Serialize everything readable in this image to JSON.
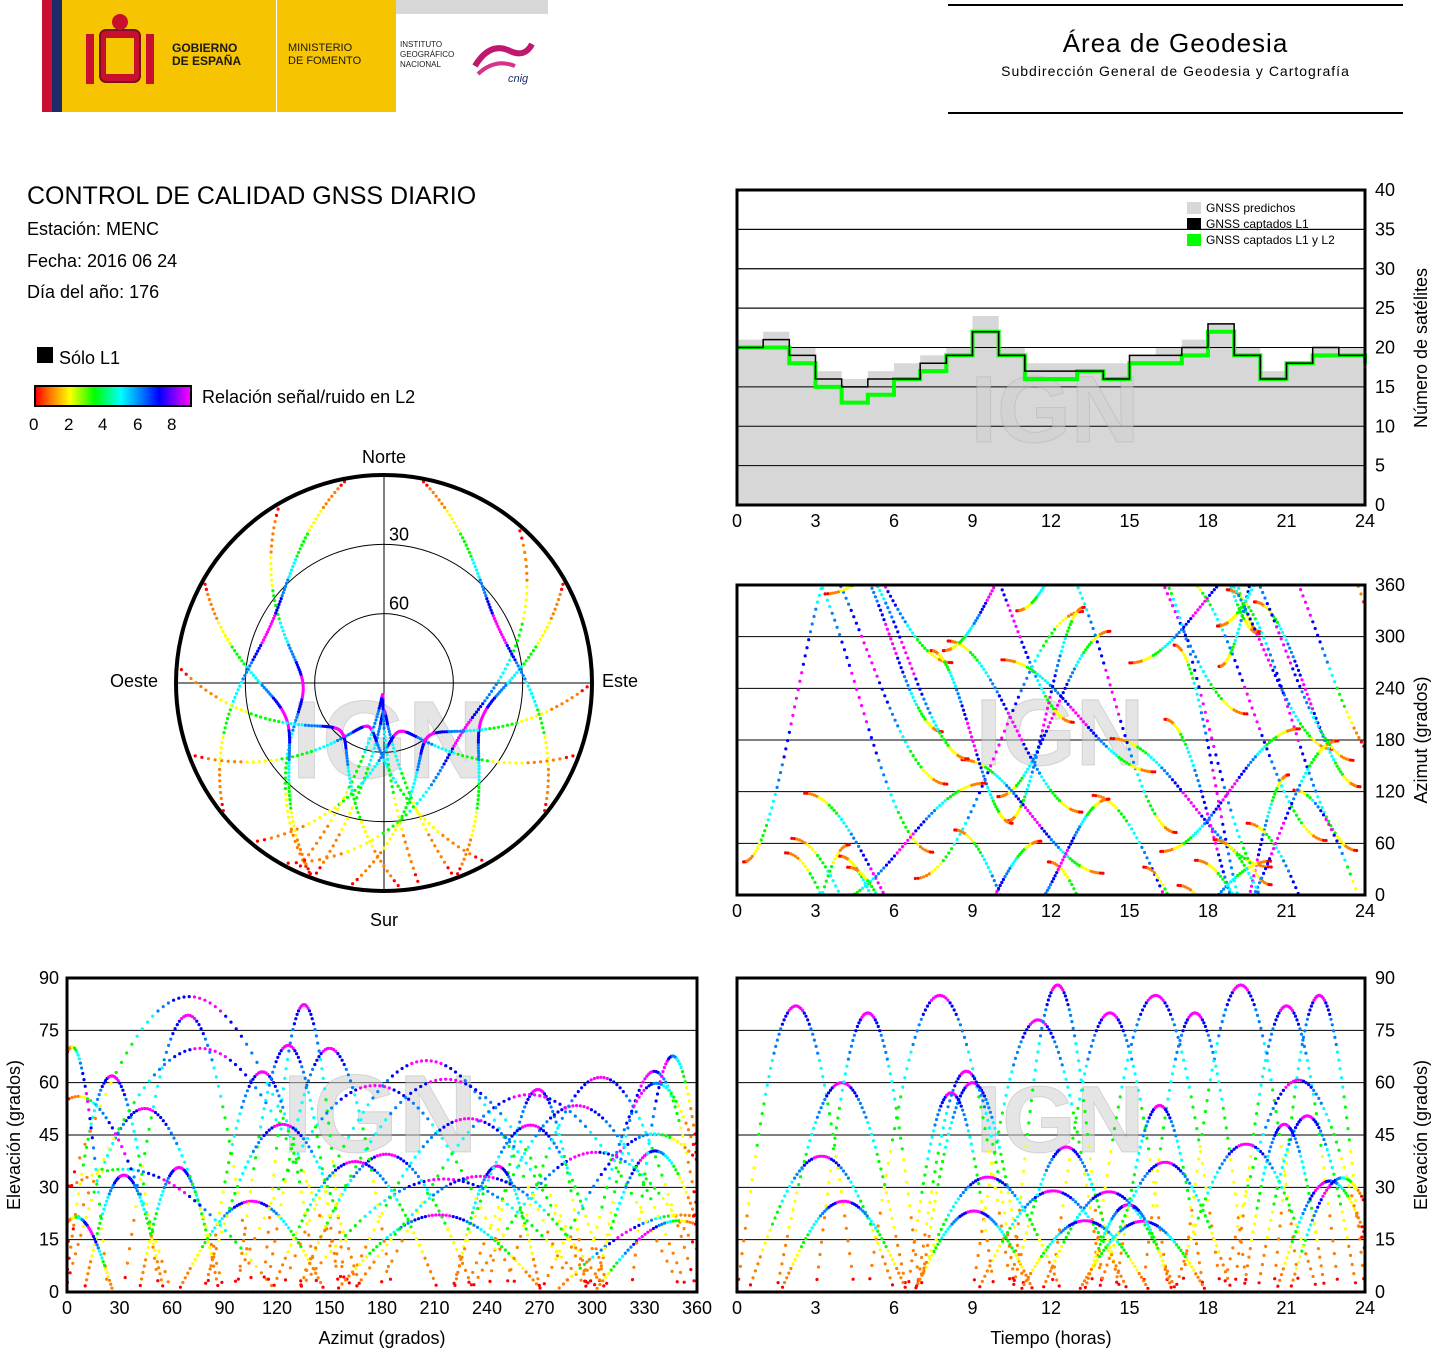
{
  "header": {
    "gov_line1": "GOBIERNO",
    "gov_line2": "DE ESPAÑA",
    "min_line1": "MINISTERIO",
    "min_line2": "DE FOMENTO",
    "ign_line1": "INSTITUTO",
    "ign_line2": "GEOGRÁFICO",
    "ign_line3": "NACIONAL",
    "cnig": "cnig",
    "area_title": "Área de Geodesia",
    "area_subtitle": "Subdirección General de Geodesia y Cartografía"
  },
  "report": {
    "title": "CONTROL DE CALIDAD GNSS DIARIO",
    "station": "Estación: MENC",
    "date": "Fecha: 2016 06 24",
    "doy": "Día del año: 176"
  },
  "legend": {
    "l1_only": "Sólo L1",
    "snr_label": "Relación señal/ruido en L2",
    "snr_ticks": [
      "0",
      "2",
      "4",
      "6",
      "8"
    ]
  },
  "watermark": "IGN",
  "colors": {
    "predicted": "#d7d7d7",
    "l1": "#000000",
    "l1l2": "#00ff00",
    "snr_scale": [
      "#ff0000",
      "#ff7f00",
      "#ffff00",
      "#00ff00",
      "#00ffff",
      "#0080ff",
      "#0000ff",
      "#ff00ff"
    ]
  },
  "chart_data": [
    {
      "id": "skyplot",
      "type": "scatter",
      "directions": {
        "north": "Norte",
        "south": "Sur",
        "east": "Este",
        "west": "Oeste"
      },
      "ring_labels": [
        "30",
        "60"
      ],
      "rings": [
        30,
        60
      ],
      "tracks": [
        {
          "rise_az": 200,
          "top_az": 270,
          "set_az": 330,
          "max_el": 55
        },
        {
          "rise_az": 210,
          "top_az": 120,
          "set_az": 40,
          "max_el": 50
        },
        {
          "rise_az": 160,
          "top_az": 180,
          "set_az": 200,
          "max_el": 78
        },
        {
          "rise_az": 150,
          "top_az": 200,
          "set_az": 250,
          "max_el": 70
        },
        {
          "rise_az": 220,
          "top_az": 160,
          "set_az": 110,
          "max_el": 68
        },
        {
          "rise_az": 300,
          "top_az": 250,
          "set_az": 200,
          "max_el": 45
        },
        {
          "rise_az": 60,
          "top_az": 110,
          "set_az": 160,
          "max_el": 45
        },
        {
          "rise_az": 170,
          "top_az": 185,
          "set_az": 205,
          "max_el": 85
        },
        {
          "rise_az": 230,
          "top_az": 300,
          "set_az": 350,
          "max_el": 35
        },
        {
          "rise_az": 130,
          "top_az": 60,
          "set_az": 10,
          "max_el": 35
        },
        {
          "rise_az": 190,
          "top_az": 140,
          "set_az": 90,
          "max_el": 60
        },
        {
          "rise_az": 175,
          "top_az": 220,
          "set_az": 275,
          "max_el": 62
        }
      ]
    },
    {
      "id": "satellites",
      "type": "area",
      "ylabel": "Número de satélites",
      "ylim": [
        0,
        40
      ],
      "xlim": [
        0,
        24
      ],
      "x_ticks": [
        0,
        3,
        6,
        9,
        12,
        15,
        18,
        21,
        24
      ],
      "y_ticks": [
        0,
        5,
        10,
        15,
        20,
        25,
        30,
        35,
        40
      ],
      "legend": [
        "GNSS predichos",
        "GNSS captados L1",
        "GNSS captados L1 y L2"
      ],
      "x": [
        0,
        1,
        2,
        3,
        4,
        5,
        6,
        7,
        8,
        9,
        10,
        11,
        12,
        13,
        14,
        15,
        16,
        17,
        18,
        19,
        20,
        21,
        22,
        23,
        24
      ],
      "series": [
        {
          "name": "GNSS predichos",
          "values": [
            21,
            22,
            20,
            17,
            16,
            17,
            18,
            19,
            20,
            24,
            20,
            18,
            18,
            18,
            18,
            19,
            20,
            21,
            23,
            20,
            17,
            18,
            20,
            20,
            19
          ]
        },
        {
          "name": "GNSS captados L1",
          "values": [
            20,
            21,
            19,
            16,
            15,
            16,
            16,
            18,
            19,
            22,
            19,
            17,
            17,
            17,
            16,
            19,
            19,
            20,
            23,
            19,
            16,
            18,
            20,
            19,
            19
          ]
        },
        {
          "name": "GNSS captados L1 y L2",
          "values": [
            20,
            20,
            18,
            15,
            13,
            14,
            16,
            17,
            19,
            22,
            19,
            16,
            16,
            17,
            16,
            18,
            18,
            19,
            22,
            19,
            16,
            18,
            19,
            19,
            18
          ]
        }
      ]
    },
    {
      "id": "azimuth_time",
      "type": "scatter",
      "ylabel": "Azimut (grados)",
      "ylim": [
        0,
        360
      ],
      "xlim": [
        0,
        24
      ],
      "x_ticks": [
        0,
        3,
        6,
        9,
        12,
        15,
        18,
        21,
        24
      ],
      "y_ticks": [
        0,
        60,
        120,
        180,
        240,
        300,
        360
      ]
    },
    {
      "id": "elevation_azimuth",
      "type": "scatter",
      "xlabel": "Azimut (grados)",
      "ylabel": "Elevación (grados)",
      "xlim": [
        0,
        360
      ],
      "ylim": [
        0,
        90
      ],
      "x_ticks": [
        0,
        30,
        60,
        90,
        120,
        150,
        180,
        210,
        240,
        270,
        300,
        330,
        360
      ],
      "y_ticks": [
        0,
        15,
        30,
        45,
        60,
        75,
        90
      ]
    },
    {
      "id": "elevation_time",
      "type": "scatter",
      "xlabel": "Tiempo (horas)",
      "ylabel": "Elevación (grados)",
      "xlim": [
        0,
        24
      ],
      "ylim": [
        0,
        90
      ],
      "x_ticks": [
        0,
        3,
        6,
        9,
        12,
        15,
        18,
        21,
        24
      ],
      "y_ticks": [
        0,
        15,
        30,
        45,
        60,
        75,
        90
      ],
      "passes": [
        {
          "start": 0.0,
          "duration": 4.5,
          "max_el": 82
        },
        {
          "start": 1.5,
          "duration": 5.0,
          "max_el": 60
        },
        {
          "start": 3.0,
          "duration": 4.0,
          "max_el": 80
        },
        {
          "start": 5.0,
          "duration": 5.5,
          "max_el": 85
        },
        {
          "start": 7.0,
          "duration": 4.0,
          "max_el": 60
        },
        {
          "start": 9.0,
          "duration": 5.0,
          "max_el": 78
        },
        {
          "start": 10.5,
          "duration": 3.5,
          "max_el": 88
        },
        {
          "start": 12.0,
          "duration": 4.5,
          "max_el": 80
        },
        {
          "start": 13.5,
          "duration": 5.0,
          "max_el": 85
        },
        {
          "start": 15.5,
          "duration": 4.0,
          "max_el": 80
        },
        {
          "start": 17.0,
          "duration": 4.5,
          "max_el": 88
        },
        {
          "start": 19.0,
          "duration": 4.0,
          "max_el": 82
        },
        {
          "start": 20.5,
          "duration": 3.5,
          "max_el": 85
        }
      ]
    }
  ]
}
